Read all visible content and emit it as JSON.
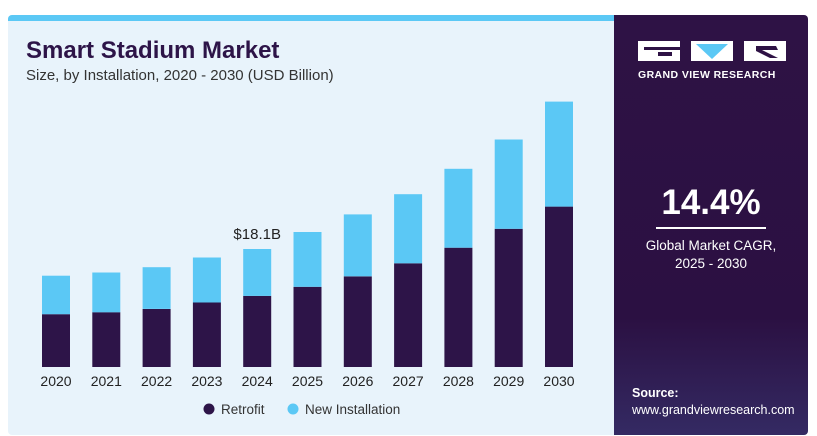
{
  "chart_data": {
    "type": "bar",
    "stacked": true,
    "title": "Smart Stadium Market",
    "subtitle": "Size, by Installation, 2020 - 2030 (USD Billion)",
    "categories": [
      "2020",
      "2021",
      "2022",
      "2023",
      "2024",
      "2025",
      "2026",
      "2027",
      "2028",
      "2029",
      "2030"
    ],
    "series": [
      {
        "name": "Retrofit",
        "color": "#2d1448",
        "values": [
          8.1,
          8.4,
          8.9,
          9.9,
          10.9,
          12.3,
          13.9,
          15.9,
          18.3,
          21.2,
          24.6
        ]
      },
      {
        "name": "New Installation",
        "color": "#5bc8f5",
        "values": [
          5.9,
          6.1,
          6.4,
          6.9,
          7.2,
          8.4,
          9.5,
          10.6,
          12.1,
          13.7,
          16.1
        ]
      }
    ],
    "annotations": [
      {
        "category": "2024",
        "text": "$18.1B"
      }
    ],
    "legend_position": "bottom",
    "grid": false
  },
  "side_panel": {
    "brand": "GRAND VIEW RESEARCH",
    "cagr_value": "14.4%",
    "cagr_label_line1": "Global Market CAGR,",
    "cagr_label_line2": "2025 - 2030",
    "source_label": "Source:",
    "source_url": "www.grandviewresearch.com"
  }
}
